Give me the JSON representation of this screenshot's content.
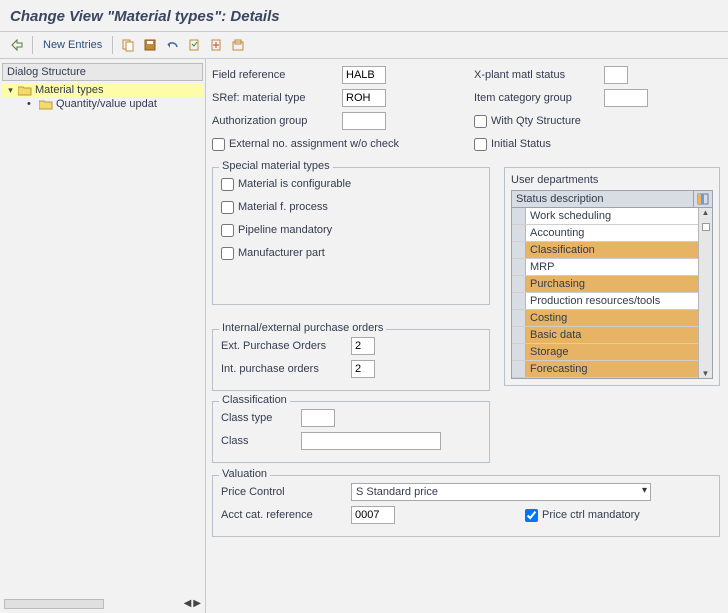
{
  "title": "Change View \"Material types\": Details",
  "toolbar": {
    "new_entries": "New Entries"
  },
  "sidebar": {
    "header": "Dialog Structure",
    "items": [
      {
        "label": "Material types",
        "selected": true,
        "expanded": true
      },
      {
        "label": "Quantity/value updat",
        "selected": false
      }
    ]
  },
  "fields": {
    "field_reference": {
      "label": "Field reference",
      "value": "HALB"
    },
    "sref_material_type": {
      "label": "SRef: material type",
      "value": "ROH"
    },
    "authorization_group": {
      "label": "Authorization group",
      "value": ""
    },
    "external_no": {
      "label": "External no. assignment w/o check",
      "checked": false
    },
    "x_plant": {
      "label": "X-plant matl status",
      "value": ""
    },
    "item_cat": {
      "label": "Item category group",
      "value": ""
    },
    "with_qty": {
      "label": "With Qty Structure",
      "checked": false
    },
    "initial_status": {
      "label": "Initial Status",
      "checked": false
    }
  },
  "special": {
    "title": "Special material types",
    "configurable": {
      "label": "Material is configurable",
      "checked": false
    },
    "f_process": {
      "label": "Material f. process",
      "checked": false
    },
    "pipeline": {
      "label": "Pipeline mandatory",
      "checked": false
    },
    "manufacturer": {
      "label": "Manufacturer part",
      "checked": false
    }
  },
  "departments": {
    "title": "User departments",
    "header": "Status description",
    "rows": [
      {
        "label": "Work scheduling",
        "selected": false
      },
      {
        "label": "Accounting",
        "selected": false
      },
      {
        "label": "Classification",
        "selected": true
      },
      {
        "label": "MRP",
        "selected": false
      },
      {
        "label": "Purchasing",
        "selected": true
      },
      {
        "label": "Production resources/tools",
        "selected": false
      },
      {
        "label": "Costing",
        "selected": true
      },
      {
        "label": "Basic data",
        "selected": true
      },
      {
        "label": "Storage",
        "selected": true
      },
      {
        "label": "Forecasting",
        "selected": true
      }
    ]
  },
  "purchase": {
    "title": "Internal/external purchase orders",
    "ext": {
      "label": "Ext. Purchase Orders",
      "value": "2"
    },
    "int": {
      "label": "Int. purchase orders",
      "value": "2"
    }
  },
  "classification": {
    "title": "Classification",
    "class_type": {
      "label": "Class type",
      "value": ""
    },
    "class": {
      "label": "Class",
      "value": ""
    }
  },
  "valuation": {
    "title": "Valuation",
    "price_control": {
      "label": "Price Control",
      "value": "S Standard price"
    },
    "acct_cat": {
      "label": "Acct cat. reference",
      "value": "0007"
    },
    "price_mandatory": {
      "label": "Price ctrl mandatory",
      "checked": true
    }
  },
  "colors": {
    "selection_yellow": "#fdfca8",
    "dept_selected": "#e6b464",
    "border": "#b8c0cc",
    "background": "#f2f2f2"
  }
}
